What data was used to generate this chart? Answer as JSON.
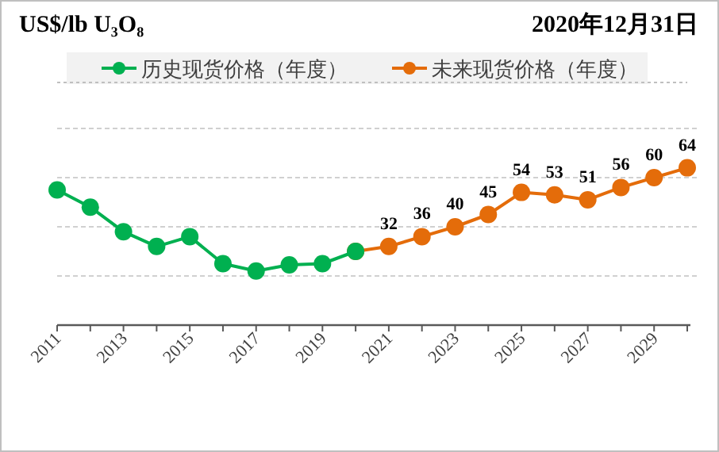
{
  "chart_data": {
    "type": "line",
    "title": "US$/lb U₃O₈",
    "subtitle": "2020年12月31日",
    "categories": [
      "2011",
      null,
      "2013",
      null,
      "2015",
      null,
      "2017",
      null,
      "2019",
      null,
      "2021",
      null,
      "2023",
      null,
      "2025",
      null,
      "2027",
      null,
      "2029",
      null
    ],
    "series": [
      {
        "name": "历史现货价格（年度）",
        "color": "#00b050",
        "values": [
          55,
          48,
          38,
          32,
          36,
          25,
          22,
          24.5,
          25,
          30,
          null,
          null,
          null,
          null,
          null,
          null,
          null,
          null,
          null,
          null
        ]
      },
      {
        "name": "未来现货价格（年度）",
        "color": "#e46c0a",
        "values": [
          null,
          null,
          null,
          null,
          null,
          null,
          null,
          null,
          null,
          30,
          32,
          36,
          40,
          45,
          54,
          53,
          51,
          56,
          60,
          64
        ],
        "value_labels": [
          null,
          null,
          null,
          null,
          null,
          null,
          null,
          null,
          null,
          null,
          "32",
          "36",
          "40",
          "45",
          "54",
          "53",
          "51",
          "56",
          "60",
          "64"
        ]
      }
    ],
    "ylim": [
      0,
      80
    ],
    "yticks": [
      {
        "value": 20,
        "label": null
      },
      {
        "value": 40,
        "label": null
      },
      {
        "value": 60,
        "label": null
      },
      {
        "value": 80,
        "label": null
      }
    ],
    "grid": "y",
    "legend": "top",
    "marker": "circle",
    "line_style": "solid",
    "tick_labels": "x"
  }
}
